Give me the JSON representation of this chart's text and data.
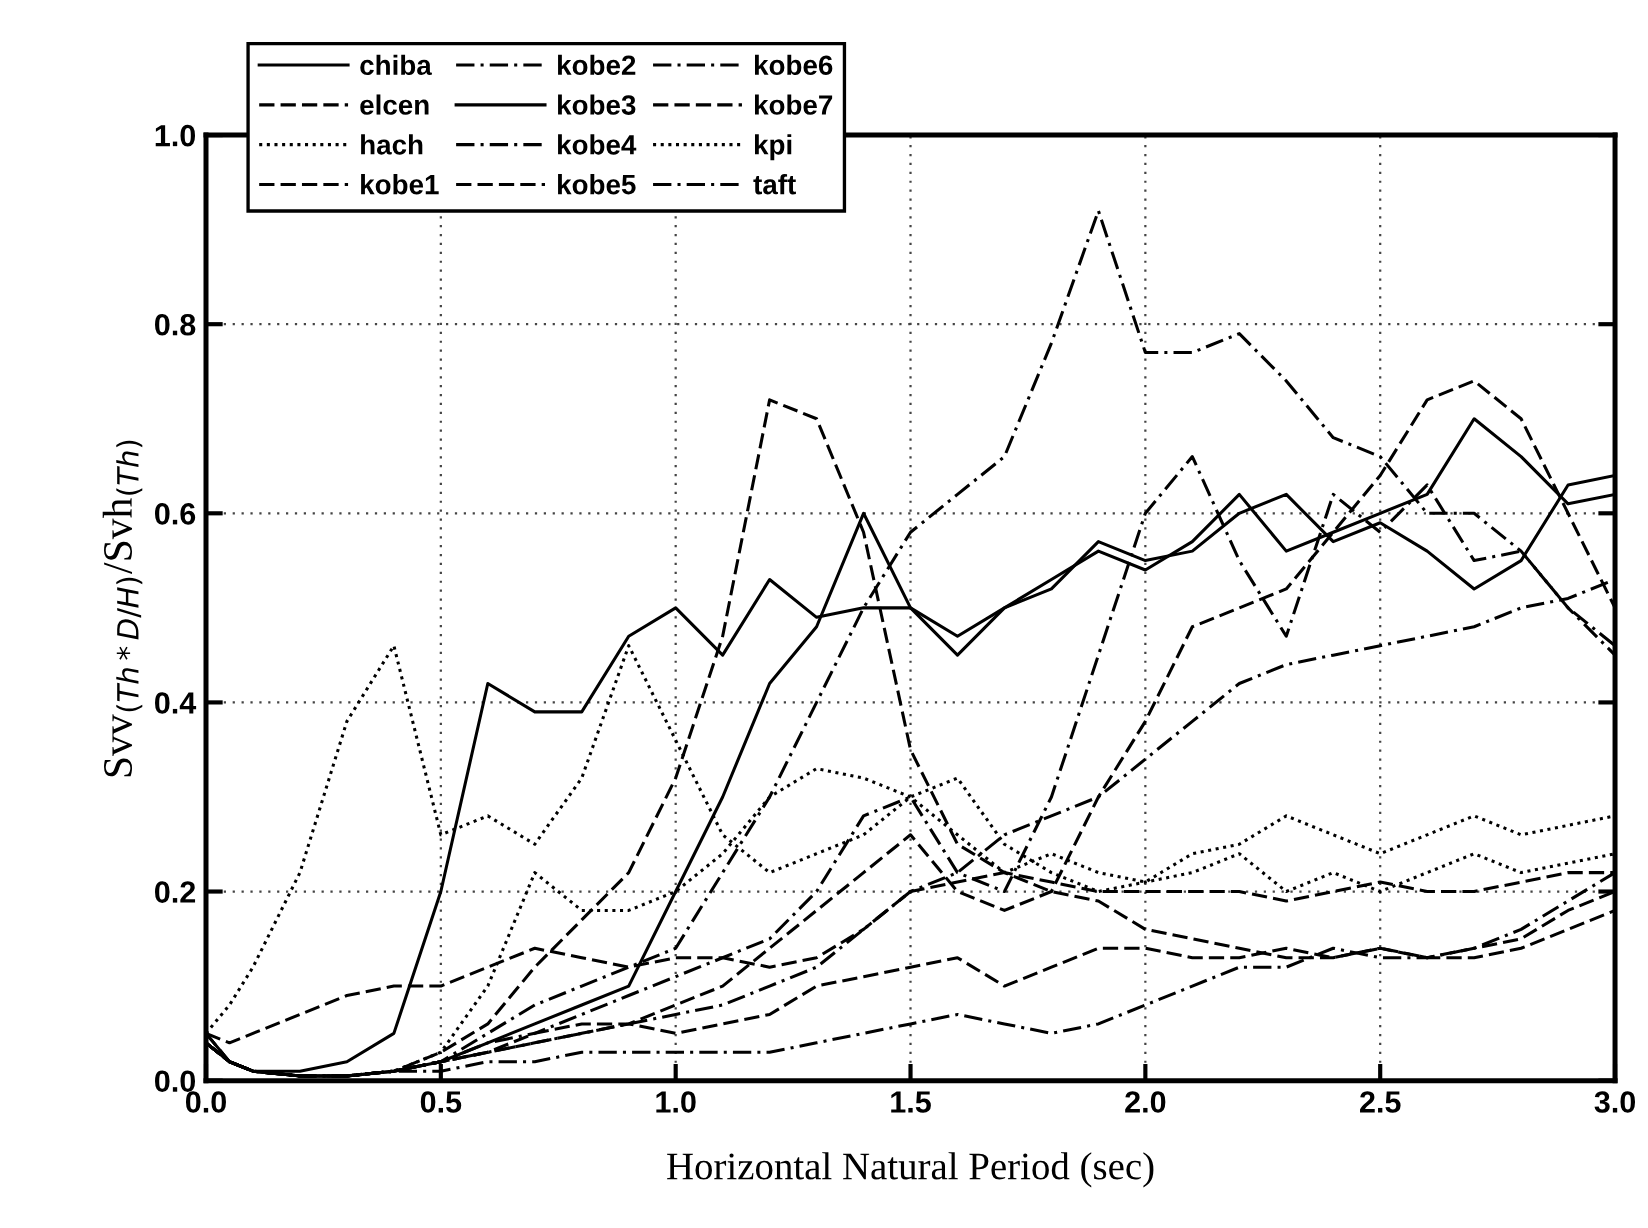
{
  "chart_data": {
    "type": "line",
    "xlabel": "Horizontal Natural Period (sec)",
    "ylabel": "Svv$_{(Th*D/H)}$/Svh$_{(Th)}$",
    "x": [
      0,
      0.05,
      0.1,
      0.2,
      0.3,
      0.4,
      0.5,
      0.6,
      0.7,
      0.8,
      0.9,
      1.0,
      1.1,
      1.2,
      1.3,
      1.4,
      1.5,
      1.6,
      1.7,
      1.8,
      1.9,
      2.0,
      2.1,
      2.2,
      2.3,
      2.4,
      2.5,
      2.6,
      2.7,
      2.8,
      2.9,
      3.0
    ],
    "xlim": [
      0,
      3
    ],
    "xticks": [
      {
        "value": 0,
        "label": "0.0"
      },
      0.5,
      {
        "value": 1,
        "label": "1.0"
      },
      1.5,
      {
        "value": 2,
        "label": "2.0"
      },
      2.5,
      {
        "value": 3,
        "label": "3.0"
      }
    ],
    "ylim": [
      0,
      1
    ],
    "yticks": [
      {
        "value": 0,
        "label": "0.0"
      },
      0.2,
      0.4,
      0.6,
      0.8,
      {
        "value": 1,
        "label": "1.0"
      }
    ],
    "grid": true,
    "legend": "top left",
    "marker": "none",
    "series": [
      {
        "name": "chiba",
        "color": "#000000",
        "line_style": "solid",
        "values": [
          0.05,
          0.02,
          0.01,
          0.01,
          0.02,
          0.05,
          0.2,
          0.42,
          0.39,
          0.39,
          0.47,
          0.5,
          0.45,
          0.53,
          0.49,
          0.5,
          0.5,
          0.47,
          0.5,
          0.52,
          0.57,
          0.55,
          0.56,
          0.6,
          0.62,
          0.57,
          0.59,
          0.56,
          0.52,
          0.55,
          0.63,
          0.64
        ]
      },
      {
        "name": "elcen",
        "color": "#000000",
        "line_style": "dashed",
        "values": [
          0.04,
          0.02,
          0.01,
          0.005,
          0.005,
          0.01,
          0.02,
          0.03,
          0.05,
          0.06,
          0.06,
          0.05,
          0.06,
          0.07,
          0.1,
          0.11,
          0.12,
          0.13,
          0.1,
          0.12,
          0.14,
          0.14,
          0.13,
          0.13,
          0.14,
          0.13,
          0.14,
          0.13,
          0.14,
          0.15,
          0.18,
          0.2
        ]
      },
      {
        "name": "hach",
        "color": "#000000",
        "line_style": "dotted",
        "values": [
          0.05,
          0.08,
          0.12,
          0.22,
          0.38,
          0.46,
          0.26,
          0.28,
          0.25,
          0.32,
          0.46,
          0.36,
          0.26,
          0.22,
          0.24,
          0.26,
          0.3,
          0.32,
          0.25,
          0.22,
          0.2,
          0.21,
          0.22,
          0.24,
          0.2,
          0.22,
          0.2,
          0.22,
          0.24,
          0.22,
          0.23,
          0.24
        ]
      },
      {
        "name": "kobe1",
        "color": "#000000",
        "line_style": "dashed",
        "values": [
          0.05,
          0.02,
          0.01,
          0.005,
          0.005,
          0.01,
          0.03,
          0.06,
          0.12,
          0.17,
          0.22,
          0.32,
          0.47,
          0.72,
          0.7,
          0.58,
          0.35,
          0.25,
          0.22,
          0.21,
          0.2,
          0.2,
          0.2,
          0.2,
          0.19,
          0.2,
          0.21,
          0.2,
          0.2,
          0.21,
          0.22,
          0.22
        ]
      },
      {
        "name": "kobe2",
        "color": "#000000",
        "line_style": "dashdot",
        "values": [
          0.04,
          0.02,
          0.01,
          0.005,
          0.005,
          0.01,
          0.02,
          0.05,
          0.08,
          0.1,
          0.12,
          0.14,
          0.22,
          0.3,
          0.4,
          0.5,
          0.58,
          0.62,
          0.66,
          0.78,
          0.92,
          0.77,
          0.77,
          0.79,
          0.74,
          0.68,
          0.66,
          0.6,
          0.6,
          0.56,
          0.5,
          0.45
        ]
      },
      {
        "name": "kobe3",
        "color": "#000000",
        "line_style": "solid",
        "values": [
          0.04,
          0.02,
          0.01,
          0.005,
          0.005,
          0.01,
          0.02,
          0.04,
          0.06,
          0.08,
          0.1,
          0.2,
          0.3,
          0.42,
          0.48,
          0.6,
          0.5,
          0.45,
          0.5,
          0.53,
          0.56,
          0.54,
          0.57,
          0.62,
          0.56,
          0.58,
          0.6,
          0.62,
          0.7,
          0.66,
          0.61,
          0.62
        ]
      },
      {
        "name": "kobe4",
        "color": "#000000",
        "line_style": "dashdot",
        "values": [
          0.04,
          0.02,
          0.01,
          0.005,
          0.005,
          0.01,
          0.02,
          0.04,
          0.05,
          0.07,
          0.09,
          0.11,
          0.13,
          0.15,
          0.2,
          0.28,
          0.3,
          0.22,
          0.2,
          0.3,
          0.45,
          0.6,
          0.66,
          0.55,
          0.47,
          0.62,
          0.58,
          0.63,
          0.55,
          0.56,
          0.5,
          0.46
        ]
      },
      {
        "name": "kobe5",
        "color": "#000000",
        "line_style": "dashed",
        "values": [
          0.04,
          0.02,
          0.01,
          0.005,
          0.005,
          0.01,
          0.02,
          0.03,
          0.04,
          0.05,
          0.06,
          0.08,
          0.1,
          0.14,
          0.18,
          0.22,
          0.26,
          0.2,
          0.18,
          0.2,
          0.3,
          0.38,
          0.48,
          0.5,
          0.52,
          0.58,
          0.64,
          0.72,
          0.74,
          0.7,
          0.6,
          0.5
        ]
      },
      {
        "name": "kobe6",
        "color": "#000000",
        "line_style": "dashdot",
        "values": [
          0.04,
          0.02,
          0.01,
          0.005,
          0.005,
          0.01,
          0.02,
          0.03,
          0.04,
          0.05,
          0.06,
          0.07,
          0.08,
          0.1,
          0.12,
          0.16,
          0.2,
          0.22,
          0.26,
          0.28,
          0.3,
          0.34,
          0.38,
          0.42,
          0.44,
          0.45,
          0.46,
          0.47,
          0.48,
          0.5,
          0.51,
          0.53
        ]
      },
      {
        "name": "kobe7",
        "color": "#000000",
        "line_style": "dashed",
        "values": [
          0.05,
          0.04,
          0.05,
          0.07,
          0.09,
          0.1,
          0.1,
          0.12,
          0.14,
          0.13,
          0.12,
          0.13,
          0.13,
          0.12,
          0.13,
          0.16,
          0.2,
          0.21,
          0.22,
          0.2,
          0.19,
          0.16,
          0.15,
          0.14,
          0.13,
          0.13,
          0.14,
          0.13,
          0.13,
          0.14,
          0.16,
          0.18
        ]
      },
      {
        "name": "kpi",
        "color": "#000000",
        "line_style": "dotted",
        "values": [
          0.04,
          0.02,
          0.01,
          0.005,
          0.005,
          0.01,
          0.03,
          0.1,
          0.22,
          0.18,
          0.18,
          0.2,
          0.24,
          0.3,
          0.33,
          0.32,
          0.3,
          0.26,
          0.22,
          0.24,
          0.22,
          0.21,
          0.24,
          0.25,
          0.28,
          0.26,
          0.24,
          0.26,
          0.28,
          0.26,
          0.27,
          0.28
        ]
      },
      {
        "name": "taft",
        "color": "#000000",
        "line_style": "dashdot",
        "values": [
          0.04,
          0.02,
          0.01,
          0.005,
          0.005,
          0.01,
          0.01,
          0.02,
          0.02,
          0.03,
          0.03,
          0.03,
          0.03,
          0.03,
          0.04,
          0.05,
          0.06,
          0.07,
          0.06,
          0.05,
          0.06,
          0.08,
          0.1,
          0.12,
          0.12,
          0.14,
          0.13,
          0.13,
          0.14,
          0.16,
          0.19,
          0.22
        ]
      }
    ]
  }
}
